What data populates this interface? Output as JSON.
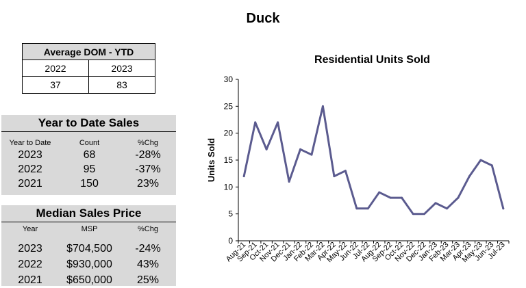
{
  "page_title": "Duck",
  "dom_table": {
    "title": "Average DOM - YTD",
    "years": [
      "2022",
      "2023"
    ],
    "values": [
      "37",
      "83"
    ]
  },
  "ytd_sales": {
    "title": "Year to Date Sales",
    "headers": [
      "Year to Date",
      "Count",
      "%Chg"
    ],
    "rows": [
      [
        "2023",
        "68",
        "-28%"
      ],
      [
        "2022",
        "95",
        "-37%"
      ],
      [
        "2021",
        "150",
        "23%"
      ]
    ]
  },
  "median_price": {
    "title": "Median Sales Price",
    "headers": [
      "Year",
      "MSP",
      "%Chg"
    ],
    "rows": [
      [
        "2023",
        "$704,500",
        "-24%"
      ],
      [
        "2022",
        "$930,000",
        "43%"
      ],
      [
        "2021",
        "$650,000",
        "25%"
      ]
    ]
  },
  "chart_data": {
    "type": "line",
    "title": "Residential Units Sold",
    "xlabel": "",
    "ylabel": "Units Sold",
    "ylim": [
      0,
      30
    ],
    "yticks": [
      0,
      5,
      10,
      15,
      20,
      25,
      30
    ],
    "grid": false,
    "line_color": "#5b5b8f",
    "categories": [
      "Aug-21",
      "Sep-21",
      "Oct-21",
      "Nov-21",
      "Dec-21",
      "Jan-22",
      "Feb-22",
      "Mar-22",
      "Apr-22",
      "May-22",
      "Jun-22",
      "Jul-22",
      "Aug-22",
      "Sep-22",
      "Oct-22",
      "Nov-22",
      "Dec-22",
      "Jan-23",
      "Feb-23",
      "Mar-23",
      "Apr-23",
      "May-23",
      "Jun-23",
      "Jul-23"
    ],
    "values": [
      12,
      22,
      17,
      22,
      11,
      17,
      16,
      25,
      12,
      13,
      6,
      6,
      9,
      8,
      8,
      5,
      5,
      7,
      6,
      8,
      12,
      15,
      14,
      6
    ]
  }
}
